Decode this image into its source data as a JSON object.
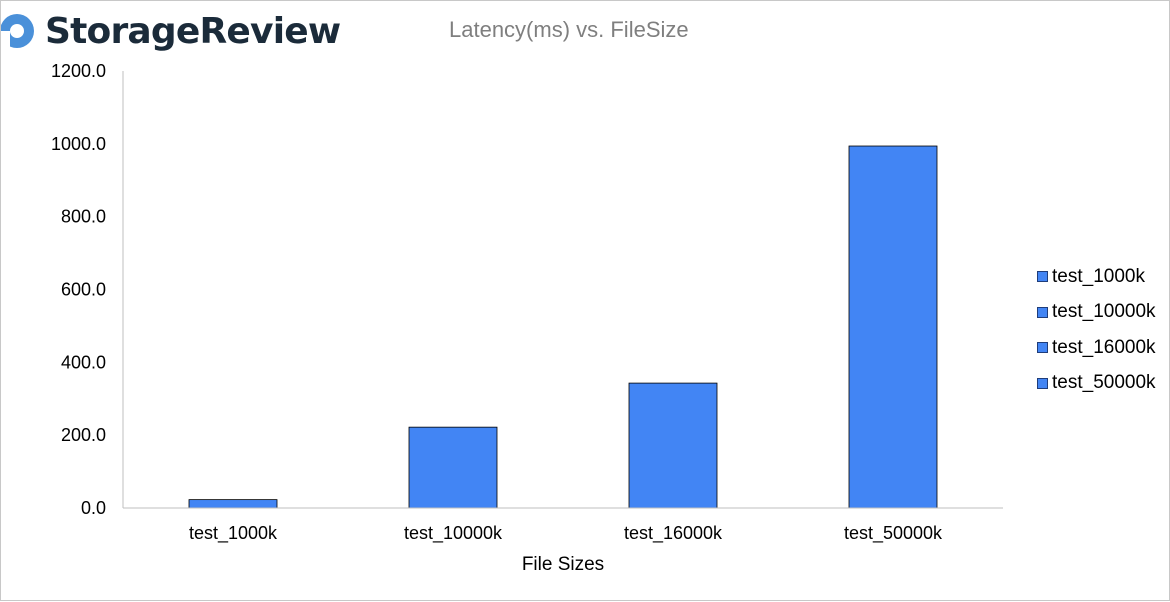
{
  "brand": {
    "name": "StorageReview",
    "logo_icon": "storagereview-logo-icon",
    "accent": "#4a90d9"
  },
  "chart_data": {
    "type": "bar",
    "title": "Latency(ms) vs. FileSize",
    "xlabel": "File Sizes",
    "ylabel": "",
    "categories": [
      "test_1000k",
      "test_10000k",
      "test_16000k",
      "test_50000k"
    ],
    "values": [
      23,
      222,
      343,
      994
    ],
    "ylim": [
      0,
      1200
    ],
    "yticks": [
      "0.0",
      "200.0",
      "400.0",
      "600.0",
      "800.0",
      "1000.0",
      "1200.0"
    ],
    "legend": {
      "placement": "right",
      "entries": [
        "test_1000k",
        "test_10000k",
        "test_16000k",
        "test_50000k"
      ]
    },
    "bar_color": "#4285f4",
    "grid": false
  }
}
